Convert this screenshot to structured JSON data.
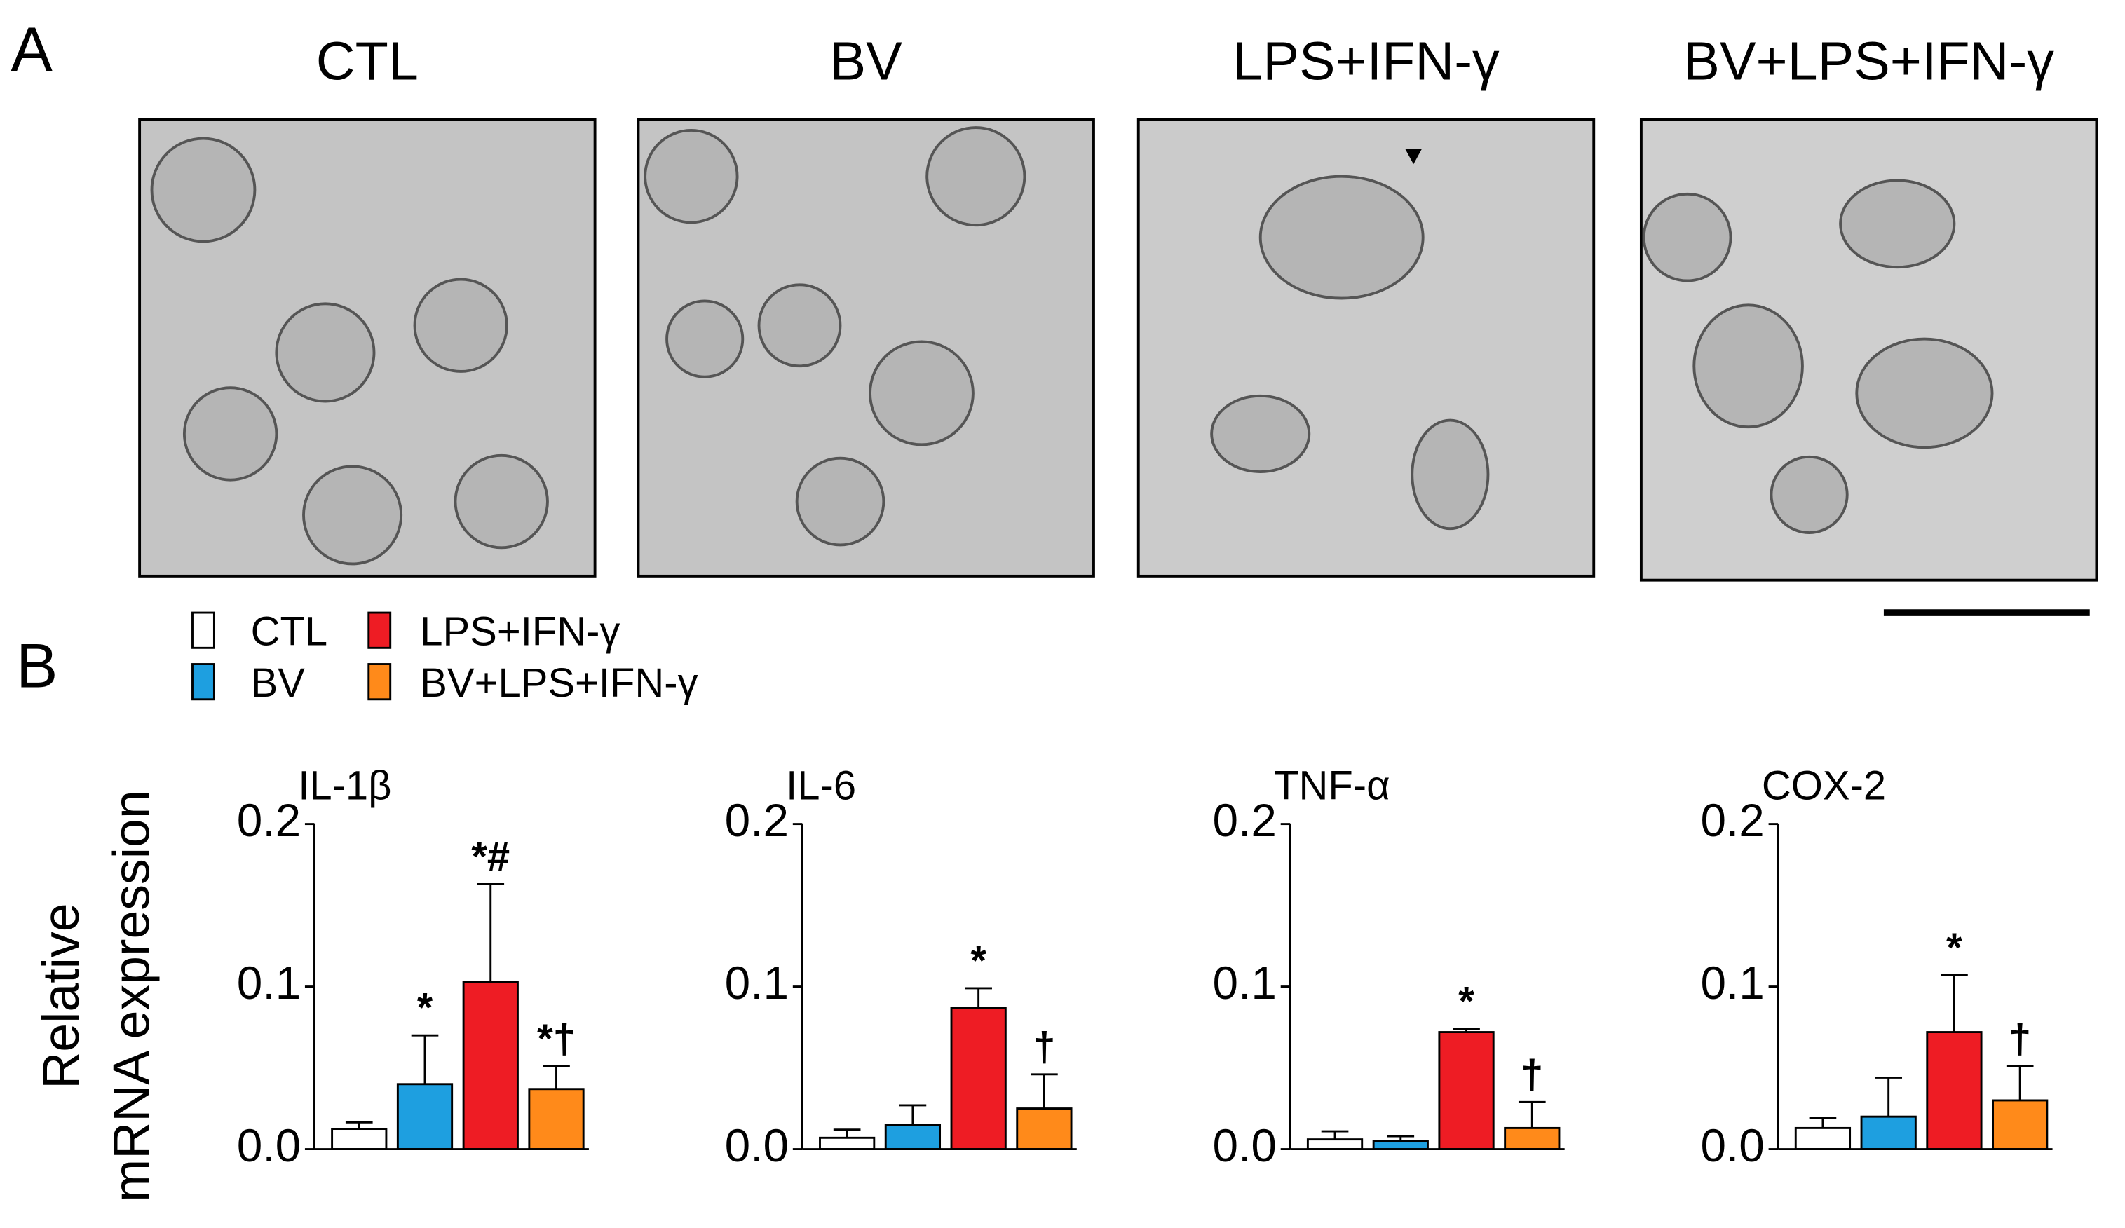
{
  "panel_labels": [
    "A",
    "B"
  ],
  "image_titles": [
    "CTL",
    "BV",
    "LPS+IFN-γ",
    "BV+LPS+IFN-γ"
  ],
  "legend": [
    {
      "name": "CTL",
      "color": "#ffffff"
    },
    {
      "name": "BV",
      "color": "#1e9fe0"
    },
    {
      "name": "LPS+IFN-γ",
      "color": "#ee1c24"
    },
    {
      "name": "BV+LPS+IFN-γ",
      "color": "#ff8a1a"
    }
  ],
  "y_label": [
    "Relative",
    "mRNA expression"
  ],
  "chart_data": [
    {
      "type": "bar",
      "title": "IL-1β",
      "values": [
        0.0125,
        0.04,
        0.103,
        0.037
      ],
      "errors": [
        0.004,
        0.03,
        0.06,
        0.014
      ],
      "annotations": [
        null,
        "*",
        "*#",
        "*†"
      ],
      "ylim": [
        0,
        0.2
      ],
      "yticks": [
        {
          "value": 0,
          "label": "0.0"
        },
        0.1,
        0.2
      ]
    },
    {
      "type": "bar",
      "title": "IL-6",
      "values": [
        0.007,
        0.015,
        0.087,
        0.025
      ],
      "errors": [
        0.005,
        0.012,
        0.012,
        0.021
      ],
      "annotations": [
        null,
        null,
        "*",
        "†"
      ],
      "ylim": [
        0,
        0.2
      ],
      "yticks": [
        {
          "value": 0,
          "label": "0.0"
        },
        0.1,
        0.2
      ]
    },
    {
      "type": "bar",
      "title": "TNF-α",
      "values": [
        0.006,
        0.005,
        0.072,
        0.013
      ],
      "errors": [
        0.005,
        0.003,
        0.002,
        0.016
      ],
      "annotations": [
        null,
        null,
        "*",
        "†"
      ],
      "ylim": [
        0,
        0.2
      ],
      "yticks": [
        {
          "value": 0,
          "label": "0.0"
        },
        0.1,
        0.2
      ]
    },
    {
      "type": "bar",
      "title": "COX-2",
      "values": [
        0.013,
        0.02,
        0.072,
        0.03
      ],
      "errors": [
        0.006,
        0.024,
        0.035,
        0.021
      ],
      "annotations": [
        null,
        null,
        "*",
        "†"
      ],
      "ylim": [
        0,
        0.2
      ],
      "yticks": [
        {
          "value": 0,
          "label": "0.0"
        },
        0.1,
        0.2
      ]
    }
  ]
}
